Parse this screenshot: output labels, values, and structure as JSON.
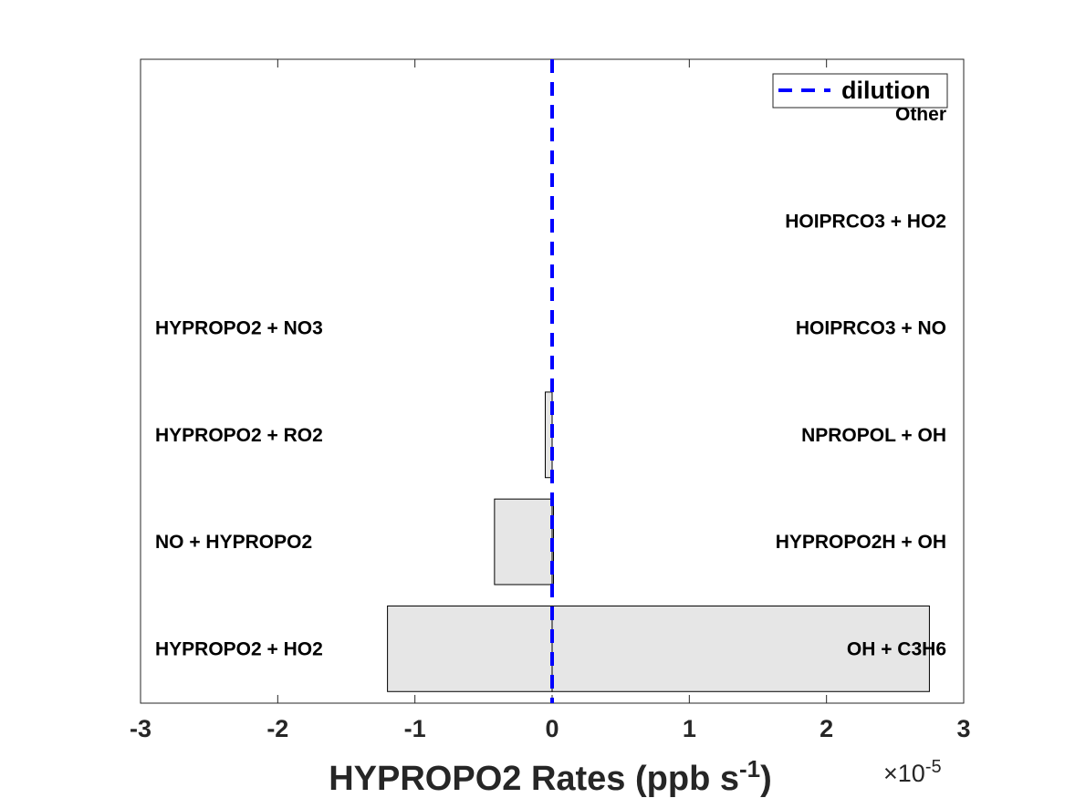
{
  "chart_data": {
    "type": "bar",
    "orientation": "horizontal",
    "xlabel": "HYPROPO2 Rates (ppb s",
    "xlabel_exponent": "-1",
    "xlabel_close": ")",
    "scale_label_prefix": "×10",
    "scale_label_exponent": "-5",
    "scale_factor": 1e-05,
    "xlim": [
      -3,
      3
    ],
    "xticks": [
      -3,
      -2,
      -1,
      0,
      1,
      2,
      3
    ],
    "xtick_labels": [
      "-3",
      "-2",
      "-1",
      "0",
      "1",
      "2",
      "3"
    ],
    "rows": [
      {
        "negative_label": "HYPROPO2 + HO2",
        "negative_value": -1.2,
        "positive_label": "OH + C3H6",
        "positive_value": 2.75
      },
      {
        "negative_label": "NO + HYPROPO2",
        "negative_value": -0.42,
        "positive_label": "HYPROPO2H + OH",
        "positive_value": 0.01
      },
      {
        "negative_label": "HYPROPO2 + RO2",
        "negative_value": -0.05,
        "positive_label": "NPROPOL + OH",
        "positive_value": 0.0
      },
      {
        "negative_label": "HYPROPO2 + NO3",
        "negative_value": 0.0,
        "positive_label": "HOIPRCO3 + NO",
        "positive_value": 0.0
      },
      {
        "negative_label": "",
        "negative_value": 0.0,
        "positive_label": "HOIPRCO3 + HO2",
        "positive_value": 0.0
      },
      {
        "negative_label": "",
        "negative_value": 0.0,
        "positive_label": "Other",
        "positive_value": 0.0
      }
    ],
    "dilution_value": 0.0,
    "legend": {
      "entries": [
        "dilution"
      ],
      "location": "top-right"
    },
    "grid": false,
    "colors": {
      "bar_fill": "#e6e6e6",
      "bar_edge": "#000000",
      "dilution_line": "#0000ff"
    }
  }
}
